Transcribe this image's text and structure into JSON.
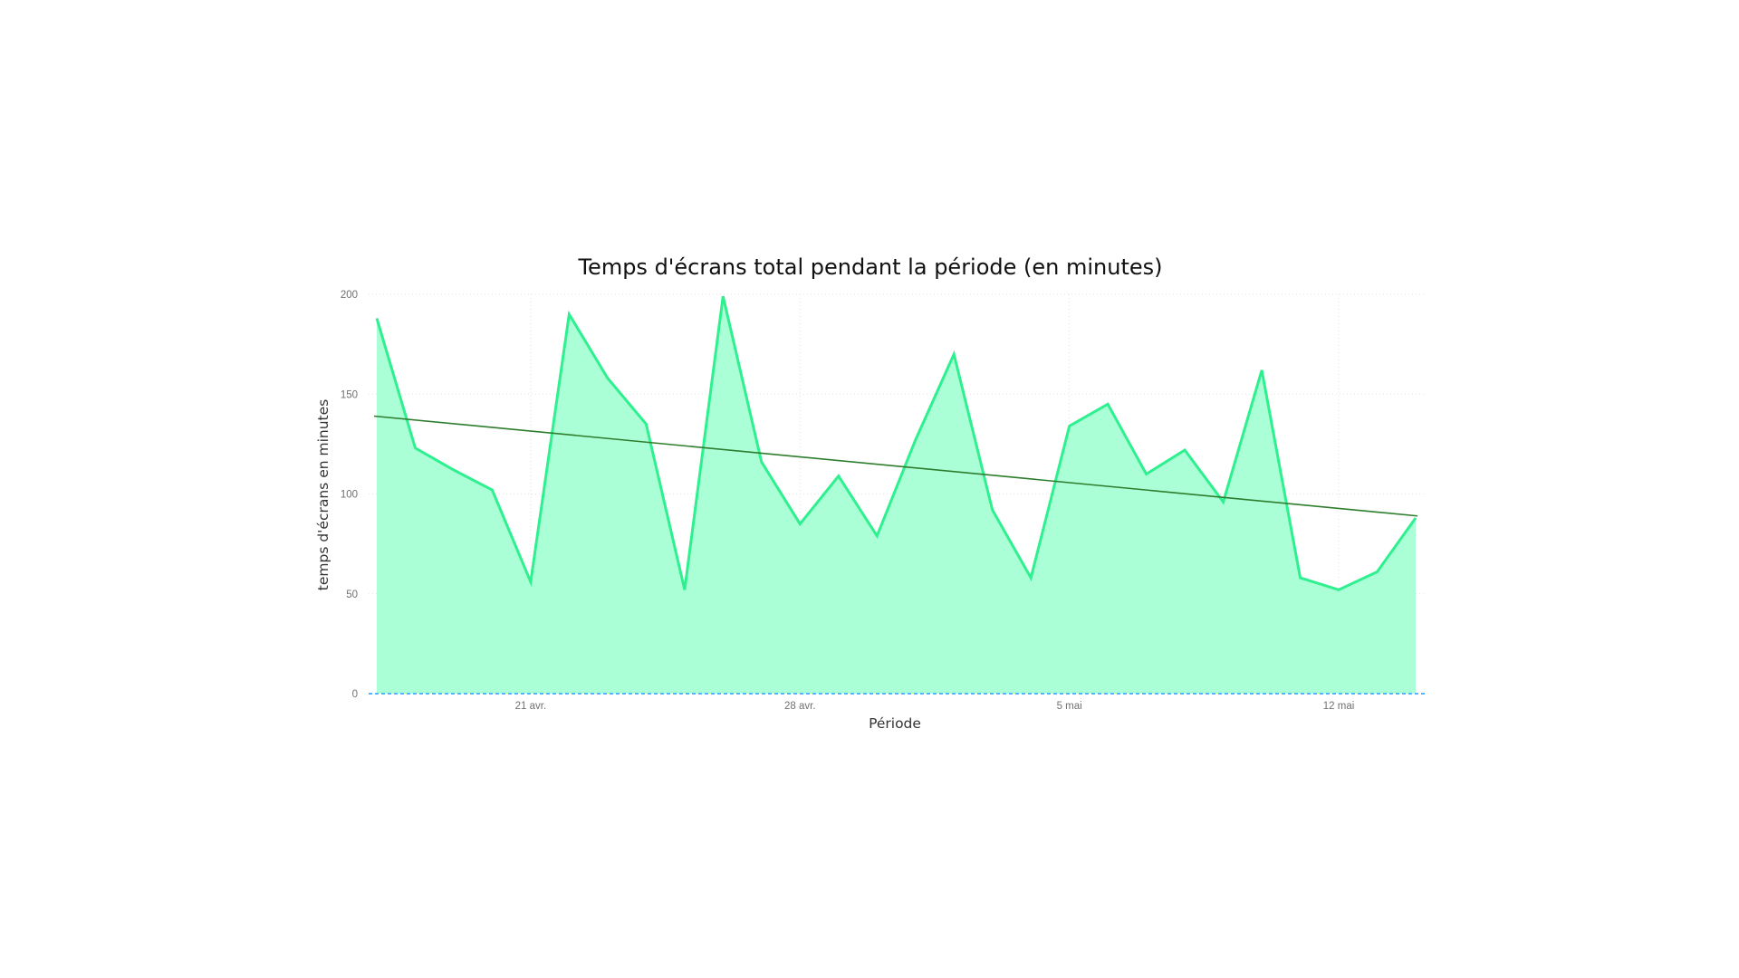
{
  "chart_data": {
    "type": "area",
    "title": "Temps d'écrans total pendant la période (en minutes)",
    "xlabel": "Période",
    "ylabel": "temps d'écrans en minutes",
    "ylim": [
      0,
      200
    ],
    "yticks": [
      0,
      50,
      100,
      150,
      200
    ],
    "x_start": "2024-04-17",
    "x_end": "2024-05-14",
    "xticks": [
      {
        "date": "2024-04-21",
        "label": "21 avr."
      },
      {
        "date": "2024-04-28",
        "label": "28 avr."
      },
      {
        "date": "2024-05-05",
        "label": "5 mai"
      },
      {
        "date": "2024-05-12",
        "label": "12 mai"
      }
    ],
    "grid": true,
    "series": [
      {
        "x": [
          "2024-04-17",
          "2024-04-18",
          "2024-04-19",
          "2024-04-20",
          "2024-04-21",
          "2024-04-22",
          "2024-04-23",
          "2024-04-24",
          "2024-04-25",
          "2024-04-26",
          "2024-04-27",
          "2024-04-28",
          "2024-04-29",
          "2024-04-30",
          "2024-05-01",
          "2024-05-02",
          "2024-05-03",
          "2024-05-04",
          "2024-05-05",
          "2024-05-06",
          "2024-05-07",
          "2024-05-08",
          "2024-05-09",
          "2024-05-10",
          "2024-05-11",
          "2024-05-12",
          "2024-05-13",
          "2024-05-14"
        ],
        "values": [
          188,
          123,
          112,
          102,
          56,
          190,
          158,
          135,
          52,
          199,
          116,
          85,
          109,
          79,
          127,
          170,
          92,
          58,
          134,
          145,
          110,
          122,
          96,
          162,
          58,
          52,
          61,
          88
        ],
        "line_color": "#2ef08f",
        "fill_color": "#aaffd7"
      }
    ],
    "trend_line": {
      "start": 139,
      "end": 89,
      "color": "#2e7d2e"
    },
    "zero_line_color": "#58b4ff"
  }
}
